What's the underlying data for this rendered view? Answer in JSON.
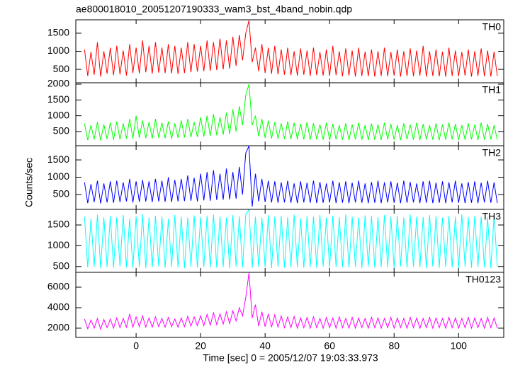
{
  "chart_data": {
    "type": "line",
    "title": "ae800018010_20051207190333_wam3_bst_4band_nobin.qdp",
    "xlabel": "Time [sec] 0 = 2005/12/07 19:03:33.973",
    "ylabel": "Counts/sec",
    "xlim": [
      -18.7,
      114
    ],
    "xticks": [
      0,
      20,
      40,
      60,
      80,
      100
    ],
    "x": [
      -16,
      -15,
      -14,
      -13,
      -12,
      -11,
      -10,
      -9,
      -8,
      -7,
      -6,
      -5,
      -4,
      -3,
      -2,
      -1,
      0,
      1,
      2,
      3,
      4,
      5,
      6,
      7,
      8,
      9,
      10,
      11,
      12,
      13,
      14,
      15,
      16,
      17,
      18,
      19,
      20,
      21,
      22,
      23,
      24,
      25,
      26,
      27,
      28,
      29,
      30,
      31,
      32,
      33,
      34,
      35,
      36,
      37,
      38,
      39,
      40,
      41,
      42,
      43,
      44,
      45,
      46,
      47,
      48,
      49,
      50,
      51,
      52,
      53,
      54,
      55,
      56,
      57,
      58,
      59,
      60,
      61,
      62,
      63,
      64,
      65,
      66,
      67,
      68,
      69,
      70,
      71,
      72,
      73,
      74,
      75,
      76,
      77,
      78,
      79,
      80,
      81,
      82,
      83,
      84,
      85,
      86,
      87,
      88,
      89,
      90,
      91,
      92,
      93,
      94,
      95,
      96,
      97,
      98,
      99,
      100,
      101,
      102,
      103,
      104,
      105,
      106,
      107,
      108,
      109,
      110,
      111,
      112
    ],
    "series": [
      {
        "name": "TH0",
        "color": "#ff0000",
        "ylim": [
          130,
          1870
        ],
        "yticks": [
          500,
          1000,
          1500
        ],
        "values": [
          1050,
          320,
          980,
          350,
          1250,
          300,
          1000,
          380,
          1100,
          340,
          1150,
          360,
          1020,
          330,
          1200,
          400,
          1100,
          390,
          1300,
          420,
          1150,
          380,
          1250,
          410,
          1100,
          400,
          1200,
          390,
          1150,
          370,
          1100,
          400,
          1250,
          420,
          1200,
          440,
          1150,
          450,
          1300,
          460,
          1250,
          480,
          1350,
          500,
          1300,
          520,
          1400,
          600,
          1450,
          750,
          1500,
          1850,
          700,
          1100,
          450,
          1200,
          400,
          1100,
          380,
          1150,
          360,
          1050,
          350,
          1100,
          340,
          1000,
          330,
          1080,
          350,
          1020,
          320,
          1100,
          340,
          980,
          330,
          1050,
          320,
          1150,
          340,
          1000,
          310,
          1080,
          330,
          1020,
          300,
          1100,
          320,
          990,
          310,
          1050,
          300,
          1000,
          320,
          1100,
          310,
          980,
          330,
          1050,
          300,
          1000,
          320,
          1080,
          310,
          1020,
          330,
          1150,
          300,
          1000,
          320,
          1050,
          310,
          990,
          300,
          1100,
          320,
          1020,
          310,
          980,
          330,
          1050,
          300,
          1000,
          320,
          1080,
          310,
          1020,
          300,
          990,
          320
        ]
      },
      {
        "name": "TH1",
        "color": "#00ff00",
        "ylim": [
          50,
          2045
        ],
        "yticks": [
          500,
          1000,
          1500,
          2000
        ],
        "values": [
          750,
          230,
          700,
          250,
          800,
          220,
          720,
          260,
          780,
          240,
          820,
          250,
          760,
          270,
          900,
          280,
          1000,
          300,
          850,
          290,
          800,
          280,
          900,
          300,
          780,
          290,
          820,
          270,
          760,
          300,
          850,
          310,
          900,
          320,
          800,
          330,
          950,
          340,
          1000,
          360,
          1050,
          380,
          950,
          400,
          1100,
          420,
          1200,
          500,
          1300,
          700,
          1650,
          2000,
          700,
          1000,
          350,
          900,
          300,
          850,
          280,
          800,
          270,
          760,
          260,
          820,
          250,
          780,
          260,
          740,
          250,
          800,
          240,
          760,
          250,
          720,
          240,
          780,
          230,
          740,
          250,
          700,
          240,
          760,
          230,
          720,
          250,
          780,
          240,
          700,
          230,
          750,
          240,
          720,
          230,
          780,
          250,
          740,
          240,
          700,
          230,
          760,
          250,
          720,
          240,
          780,
          230,
          740,
          250,
          700,
          240,
          760,
          230,
          720,
          240,
          780,
          250,
          740,
          230,
          700,
          240,
          760,
          250,
          720,
          230,
          780,
          240,
          740,
          250,
          700,
          240
        ]
      },
      {
        "name": "TH2",
        "color": "#0000ff",
        "ylim": [
          70,
          1910
        ],
        "yticks": [
          500,
          1000,
          1500
        ],
        "values": [
          850,
          250,
          800,
          280,
          900,
          240,
          820,
          270,
          880,
          260,
          900,
          280,
          850,
          300,
          950,
          270,
          880,
          290,
          920,
          300,
          880,
          280,
          950,
          300,
          900,
          290,
          1000,
          280,
          920,
          300,
          950,
          310,
          1050,
          320,
          980,
          300,
          1100,
          330,
          1150,
          320,
          1200,
          340,
          1100,
          350,
          1250,
          360,
          1150,
          380,
          1300,
          500,
          1700,
          1900,
          150,
          1100,
          300,
          950,
          280,
          900,
          270,
          880,
          260,
          850,
          270,
          900,
          260,
          820,
          250,
          880,
          270,
          840,
          260,
          900,
          250,
          860,
          260,
          820,
          270,
          900,
          250,
          850,
          260,
          880,
          250,
          840,
          270,
          900,
          260,
          820,
          250,
          860,
          260,
          900,
          250,
          850,
          270,
          880,
          260,
          840,
          250,
          900,
          260,
          860,
          270,
          820,
          250,
          880,
          260,
          900,
          250,
          840,
          260,
          880,
          250,
          850,
          270,
          900,
          260,
          820,
          250,
          860,
          260,
          880,
          250,
          840,
          270,
          900,
          260,
          850,
          250
        ]
      },
      {
        "name": "TH3",
        "color": "#00ffff",
        "ylim": [
          360,
          1875
        ],
        "yticks": [
          500,
          1000,
          1500
        ],
        "values": [
          1700,
          480,
          1650,
          500,
          1750,
          460,
          1680,
          490,
          1720,
          470,
          1690,
          500,
          1740,
          480,
          1660,
          470,
          1710,
          490,
          1750,
          460,
          1680,
          480,
          1720,
          500,
          1700,
          470,
          1650,
          490,
          1740,
          480,
          1700,
          460,
          1680,
          500,
          1730,
          470,
          1690,
          490,
          1720,
          480,
          1750,
          470,
          1700,
          490,
          1680,
          460,
          1740,
          500,
          1710,
          480,
          1760,
          1870,
          470,
          1700,
          490,
          1680,
          480,
          1740,
          460,
          1700,
          500,
          1720,
          470,
          1690,
          490,
          1750,
          480,
          1660,
          470,
          1710,
          490,
          1700,
          460,
          1740,
          500,
          1680,
          470,
          1720,
          490,
          1690,
          480,
          1750,
          470,
          1700,
          490,
          1680,
          460,
          1730,
          500,
          1710,
          470,
          1690,
          490,
          1740,
          480,
          1700,
          460,
          1720,
          500,
          1680,
          470,
          1750,
          490,
          1700,
          480,
          1690,
          460,
          1740,
          500,
          1710,
          470,
          1680,
          490,
          1720,
          480,
          1700,
          460,
          1750,
          500,
          1690,
          470,
          1720,
          490,
          1700,
          480,
          1680,
          460,
          1740,
          500
        ]
      },
      {
        "name": "TH0123",
        "color": "#ff00ff",
        "ylim": [
          1100,
          7450
        ],
        "yticks": [
          2000,
          4000,
          6000
        ],
        "values": [
          2900,
          1950,
          2800,
          2000,
          2950,
          1900,
          2850,
          2050,
          2900,
          2000,
          3000,
          2050,
          2950,
          2100,
          3400,
          2100,
          3100,
          2150,
          3200,
          2100,
          3000,
          2100,
          3100,
          2150,
          2950,
          2100,
          3050,
          2150,
          2900,
          2100,
          3000,
          2150,
          3150,
          2200,
          3100,
          2250,
          3200,
          2250,
          3350,
          2300,
          3500,
          2350,
          3400,
          2400,
          3600,
          2450,
          3700,
          2700,
          4000,
          3200,
          5000,
          7400,
          3000,
          4300,
          2200,
          3600,
          2150,
          3400,
          2100,
          3300,
          2100,
          3200,
          2050,
          3100,
          2050,
          3150,
          2000,
          3000,
          2050,
          3050,
          2000,
          3100,
          2050,
          2950,
          2000,
          3050,
          2050,
          3000,
          2000,
          3100,
          2050,
          2950,
          2000,
          3050,
          2000,
          3000,
          2050,
          2950,
          2000,
          3050,
          2050,
          3000,
          2000,
          2950,
          2050,
          3050,
          2000,
          3000,
          2050,
          2950,
          2000,
          3050,
          2050,
          3000,
          2000,
          2950,
          2050,
          3050,
          2000,
          3000,
          2050,
          2950,
          2000,
          3050,
          2050,
          3000,
          2000,
          2950,
          2050,
          3050,
          2000,
          3000,
          2050,
          2950,
          2000,
          3050,
          2050,
          3000,
          2000
        ]
      }
    ]
  }
}
